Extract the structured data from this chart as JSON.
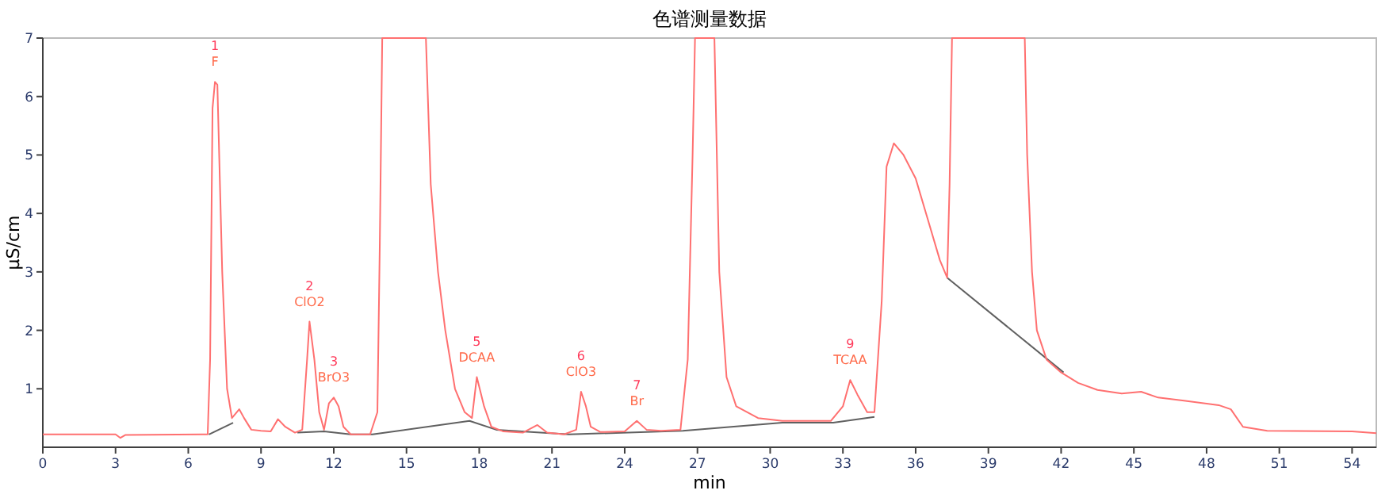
{
  "chart_data": {
    "type": "line",
    "title": "色谱测量数据",
    "xlabel": "min",
    "ylabel": "µS/cm",
    "xlim": [
      0,
      55
    ],
    "ylim": [
      0,
      7
    ],
    "xticks": [
      0,
      3,
      6,
      9,
      12,
      15,
      18,
      21,
      24,
      27,
      30,
      33,
      36,
      39,
      42,
      45,
      48,
      51,
      54
    ],
    "yticks": [
      1,
      2,
      3,
      4,
      5,
      6,
      7
    ],
    "grid": false,
    "series": [
      {
        "color": "#ff7070",
        "x": [
          0,
          3.0,
          3.2,
          3.4,
          6.8,
          6.9,
          7.0,
          7.1,
          7.2,
          7.4,
          7.6,
          7.8,
          8.1,
          8.3,
          8.6,
          9.0,
          9.4,
          9.7,
          10.0,
          10.4,
          10.7,
          10.9,
          11.0,
          11.2,
          11.4,
          11.6,
          11.8,
          12.0,
          12.2,
          12.4,
          12.7,
          13.5,
          13.8,
          13.9,
          14.0,
          15.8,
          16.0,
          16.3,
          16.6,
          17.0,
          17.4,
          17.7,
          17.9,
          18.2,
          18.5,
          19.0,
          19.8,
          20.4,
          20.8,
          21.5,
          22.0,
          22.2,
          22.4,
          22.6,
          23.0,
          24.0,
          24.5,
          24.9,
          25.5,
          26.3,
          26.6,
          26.8,
          26.9,
          27.7,
          27.9,
          28.2,
          28.6,
          29.5,
          30.5,
          32.5,
          33.0,
          33.3,
          33.6,
          34.0,
          34.3,
          34.6,
          34.8,
          35.1,
          35.5,
          36.0,
          36.5,
          37.0,
          37.3,
          37.4,
          37.5,
          40.5,
          40.6,
          40.8,
          41.0,
          41.4,
          42.0,
          42.7,
          43.5,
          44.5,
          45.3,
          46.0,
          47.0,
          48.5,
          49.0,
          49.5,
          50.5,
          54.0,
          55.0
        ],
        "values": [
          0.22,
          0.22,
          0.16,
          0.21,
          0.22,
          1.5,
          5.8,
          6.25,
          6.2,
          3.0,
          1.0,
          0.5,
          0.65,
          0.5,
          0.3,
          0.28,
          0.27,
          0.48,
          0.35,
          0.25,
          0.3,
          1.5,
          2.15,
          1.5,
          0.6,
          0.3,
          0.75,
          0.85,
          0.7,
          0.35,
          0.22,
          0.22,
          0.6,
          3.5,
          7,
          7,
          4.5,
          3.0,
          2.0,
          1.0,
          0.6,
          0.5,
          1.2,
          0.7,
          0.35,
          0.27,
          0.25,
          0.38,
          0.25,
          0.22,
          0.3,
          0.95,
          0.7,
          0.35,
          0.26,
          0.27,
          0.45,
          0.3,
          0.28,
          0.3,
          1.5,
          5.0,
          7,
          7,
          3.0,
          1.2,
          0.7,
          0.5,
          0.45,
          0.45,
          0.7,
          1.15,
          0.9,
          0.6,
          0.6,
          2.5,
          4.8,
          5.2,
          5.0,
          4.6,
          3.9,
          3.2,
          2.9,
          4.5,
          7,
          7,
          5.0,
          3.0,
          2.0,
          1.5,
          1.28,
          1.1,
          0.98,
          0.92,
          0.95,
          0.85,
          0.8,
          0.72,
          0.65,
          0.35,
          0.28,
          0.27,
          0.24
        ]
      },
      {
        "color": "#606060",
        "x": [
          6.85,
          7.85,
          7.9,
          10.5,
          11.6,
          12.7,
          13.6,
          17.6,
          18.7,
          21.7,
          26.4,
          30.5,
          32.6,
          34.3,
          34.4,
          37.3,
          42.1
        ],
        "values": [
          0.22,
          0.42,
          null,
          0.25,
          0.27,
          0.22,
          0.22,
          0.45,
          0.3,
          0.22,
          0.28,
          0.42,
          0.42,
          0.52,
          null,
          2.9,
          1.28
        ]
      }
    ],
    "annotations": [
      {
        "text": "1\nF",
        "x": 7.1,
        "y": 6.25
      },
      {
        "text": "2\nClO2",
        "x": 11.0,
        "y": 2.15
      },
      {
        "text": "3\nBrO3",
        "x": 12.0,
        "y": 0.85
      },
      {
        "text": "5\nDCAA",
        "x": 17.9,
        "y": 1.2
      },
      {
        "text": "6\nClO3",
        "x": 22.2,
        "y": 0.95
      },
      {
        "text": "7\nBr",
        "x": 24.5,
        "y": 0.45
      },
      {
        "text": "9\nTCAA",
        "x": 33.3,
        "y": 1.15
      }
    ]
  }
}
